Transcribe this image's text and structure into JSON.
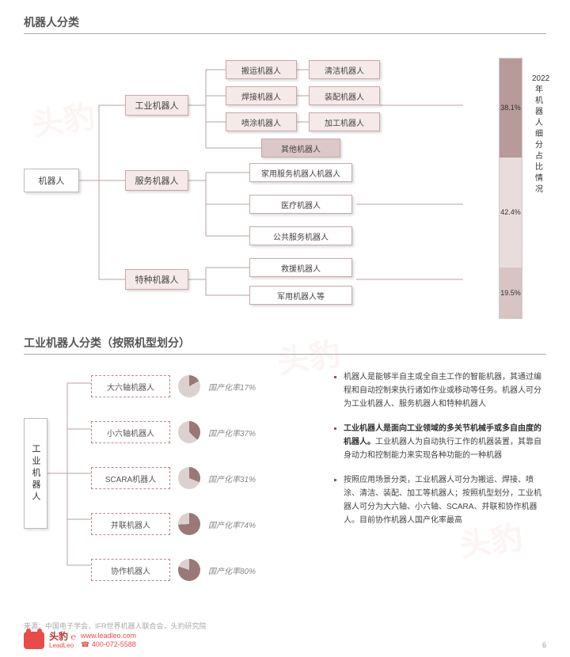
{
  "section1": {
    "title": "机器人分类",
    "root": "机器人",
    "branches": [
      {
        "label": "工业机器人",
        "leaves": [
          "搬运机器人",
          "焊接机器人",
          "喷涂机器人",
          "其他机器人",
          "清洁机器人",
          "装配机器人",
          "加工机器人"
        ]
      },
      {
        "label": "服务机器人",
        "leaves": [
          "家用服务机器人机器人",
          "医疗机器人",
          "公共服务机器人"
        ]
      },
      {
        "label": "特种机器人",
        "leaves": [
          "救援机器人",
          "军用机器人等"
        ]
      }
    ],
    "stacked": {
      "label": "2022年机器人细分占比情况",
      "segments": [
        {
          "value": "38.1%",
          "pct": 38.1,
          "color": "#b89a9a"
        },
        {
          "value": "42.4%",
          "pct": 42.4,
          "color": "#e8dcdc"
        },
        {
          "value": "19.5%",
          "pct": 19.5,
          "color": "#d8c4c4"
        }
      ]
    }
  },
  "section2": {
    "title": "工业机器人分类（按照机型划分）",
    "root": "工业机器人",
    "items": [
      {
        "label": "大六轴机器人",
        "pct": 17,
        "pctLabel": "国产化率17%"
      },
      {
        "label": "小六轴机器人",
        "pct": 37,
        "pctLabel": "国产化率37%"
      },
      {
        "label": "SCARA机器人",
        "pct": 31,
        "pctLabel": "国产化率31%"
      },
      {
        "label": "并联机器人",
        "pct": 74,
        "pctLabel": "国产化率74%"
      },
      {
        "label": "协作机器人",
        "pct": 80,
        "pctLabel": "国产化率80%"
      }
    ],
    "pieColors": {
      "filled": "#9a7878",
      "empty": "#dcd0d0"
    },
    "bullets": [
      {
        "text": "机器人是能够半自主或全自主工作的智能机器，其通过编程和自动控制来执行诸如作业或移动等任务。机器人可分为工业机器人、服务机器人和特种机器人"
      },
      {
        "text": "工业机器人是面向工业领域的多关节机械手或多自由度的机器人。工业机器人为自动执行工作的机器装置，其靠自身动力和控制能力来实现各种功能的一种机器",
        "boldPrefix": "工业机器人是面向工业领域的多关节机械手或多自由度的机器人。"
      },
      {
        "text": "按照应用场景分类，工业机器人可分为搬运、焊接、喷涂、清洁、装配、加工等机器人；按照机型划分，工业机器人可分为大六轴、小六轴、SCARA、并联和协作机器人。目前协作机器人国产化率最高"
      }
    ]
  },
  "source": "来源：中国电子学会，IFR世界机器人联合会，头豹研究院",
  "footer": {
    "brand": "头豹",
    "brandSub": "LeadLeo",
    "url": "www.leadleo.com",
    "phone": "400-072-5588",
    "pageNum": "6"
  },
  "colors": {
    "nodeBorder": "#c9a8a8",
    "nodeFill": "#f5e9e9",
    "line": "#b8a0a0"
  }
}
